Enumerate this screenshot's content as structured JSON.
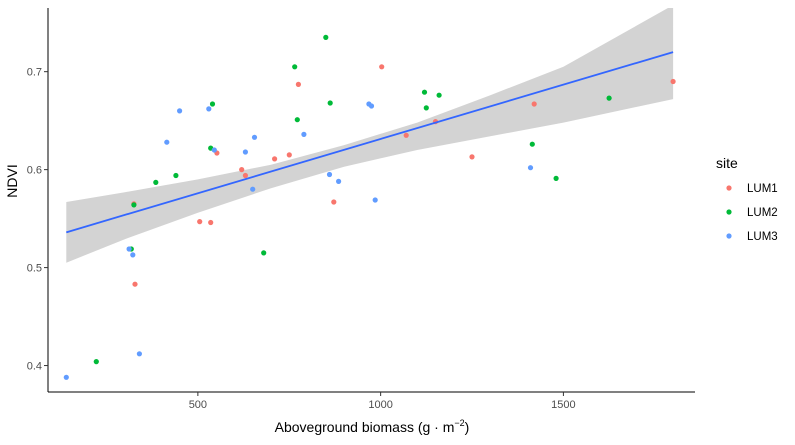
{
  "chart_data": {
    "type": "scatter",
    "xlabel": "Aboveground biomass (g · m",
    "xlabel_exponent": "−2",
    "xlabel_suffix": ")",
    "ylabel": "NDVI",
    "xlim": [
      90,
      1860
    ],
    "ylim": [
      0.373,
      0.765
    ],
    "x_ticks": [
      500,
      1000,
      1500
    ],
    "x_tick_labels": [
      "500",
      "1000",
      "1500"
    ],
    "y_ticks": [
      0.4,
      0.5,
      0.6,
      0.7
    ],
    "y_tick_labels": [
      "0.4",
      "0.5",
      "0.6",
      "0.7"
    ],
    "grid": false,
    "legend": {
      "title": "site",
      "position": "right"
    },
    "series": [
      {
        "name": "LUM1",
        "color": "#F8766D",
        "points": [
          [
            325,
            0.565
          ],
          [
            328,
            0.483
          ],
          [
            505,
            0.547
          ],
          [
            535,
            0.546
          ],
          [
            552,
            0.617
          ],
          [
            620,
            0.6
          ],
          [
            630,
            0.594
          ],
          [
            710,
            0.611
          ],
          [
            750,
            0.615
          ],
          [
            775,
            0.687
          ],
          [
            872,
            0.567
          ],
          [
            1003,
            0.705
          ],
          [
            1070,
            0.635
          ],
          [
            1150,
            0.649
          ],
          [
            1250,
            0.613
          ],
          [
            1420,
            0.667
          ],
          [
            1800,
            0.69
          ]
        ]
      },
      {
        "name": "LUM2",
        "color": "#00BA38",
        "points": [
          [
            222,
            0.404
          ],
          [
            318,
            0.519
          ],
          [
            325,
            0.564
          ],
          [
            385,
            0.587
          ],
          [
            440,
            0.594
          ],
          [
            535,
            0.622
          ],
          [
            540,
            0.667
          ],
          [
            680,
            0.515
          ],
          [
            765,
            0.705
          ],
          [
            772,
            0.651
          ],
          [
            850,
            0.735
          ],
          [
            862,
            0.668
          ],
          [
            1120,
            0.679
          ],
          [
            1125,
            0.663
          ],
          [
            1160,
            0.676
          ],
          [
            1415,
            0.626
          ],
          [
            1480,
            0.591
          ],
          [
            1625,
            0.673
          ]
        ]
      },
      {
        "name": "LUM3",
        "color": "#619CFF",
        "points": [
          [
            140,
            0.388
          ],
          [
            312,
            0.519
          ],
          [
            322,
            0.513
          ],
          [
            340,
            0.412
          ],
          [
            415,
            0.628
          ],
          [
            450,
            0.66
          ],
          [
            530,
            0.662
          ],
          [
            545,
            0.62
          ],
          [
            630,
            0.618
          ],
          [
            650,
            0.58
          ],
          [
            655,
            0.633
          ],
          [
            790,
            0.636
          ],
          [
            860,
            0.595
          ],
          [
            885,
            0.588
          ],
          [
            968,
            0.667
          ],
          [
            975,
            0.665
          ],
          [
            985,
            0.569
          ],
          [
            1410,
            0.602
          ]
        ]
      }
    ],
    "fit": {
      "method": "lm",
      "color": "#3366FF",
      "ribbon_color": "#D3D3D3",
      "line": [
        [
          140,
          0.536
        ],
        [
          1800,
          0.72
        ]
      ],
      "band": [
        [
          140,
          0.505,
          0.567
        ],
        [
          300,
          0.529,
          0.577
        ],
        [
          500,
          0.556,
          0.59
        ],
        [
          700,
          0.581,
          0.605
        ],
        [
          900,
          0.603,
          0.625
        ],
        [
          1100,
          0.62,
          0.648
        ],
        [
          1300,
          0.634,
          0.676
        ],
        [
          1500,
          0.648,
          0.705
        ],
        [
          1800,
          0.672,
          0.768
        ]
      ]
    }
  }
}
